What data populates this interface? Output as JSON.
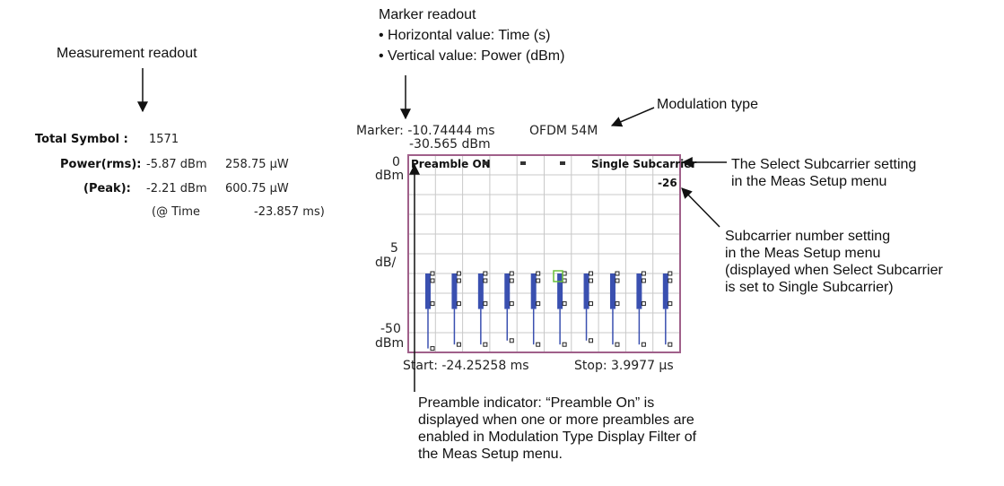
{
  "measurement": {
    "total_symbol_label": "Total Symbol :",
    "total_symbol_value": "1571",
    "power_rms_label": "Power(rms):",
    "power_rms_dbm": "-5.87 dBm",
    "power_rms_uw": "258.75 µW",
    "peak_label": "(Peak):",
    "peak_dbm": "-2.21 dBm",
    "peak_uw": "600.75 µW",
    "peak_time_label": "(@ Time",
    "peak_time_value": "-23.857 ms)"
  },
  "screen": {
    "marker_line1": "Marker: -10.74444 ms",
    "marker_line2": "-30.565 dBm",
    "modulation": "OFDM 54M",
    "preamble_indicator": "Preamble ON",
    "single_subcarrier": "Single Subcarrier",
    "subcarrier_number": "-26",
    "y_top_value": "0",
    "y_top_unit": "dBm",
    "y_scale_value": "5",
    "y_scale_unit": "dB/",
    "y_bottom_value": "-50",
    "y_bottom_unit": "dBm",
    "start": "Start: -24.25258 ms",
    "stop": "Stop: 3.9977 µs"
  },
  "callouts": {
    "measurement_readout": "Measurement readout",
    "marker_readout_title": "Marker readout",
    "marker_readout_h": "• Horizontal value: Time (s)",
    "marker_readout_v": "• Vertical value: Power (dBm)",
    "modulation_type": "Modulation type",
    "select_subcarrier": "The Select Subcarrier setting\nin the Meas Setup menu",
    "subcarrier_number": "Subcarrier number setting\nin the Meas Setup menu\n(displayed when Select Subcarrier\nis set to Single Subcarrier)",
    "preamble_indicator": "Preamble indicator: “Preamble On” is\ndisplayed when one or more preambles are\nenabled in Modulation Type Display Filter of\nthe Meas Setup menu."
  },
  "colors": {
    "frame": "#a0608a",
    "grid": "#c8c8c8",
    "trace": "#3a50b0",
    "marker": "#6bbf3a"
  },
  "chart_data": {
    "type": "line",
    "title": "",
    "xlabel": "",
    "ylabel": "",
    "ylim": [
      -50,
      0
    ],
    "y_ticks": [
      "0 dBm",
      "-50 dBm"
    ],
    "scale": "5 dB/",
    "x_start": "-24.25258 ms",
    "x_stop": "3.9977 µs",
    "marker": {
      "time": "-10.74444 ms",
      "power": "-30.565 dBm"
    },
    "grid": true,
    "series": [
      {
        "values": [
          -31,
          -39,
          -49,
          -31,
          -39,
          -48,
          -31,
          -39,
          -48,
          -31,
          -39,
          -47,
          -31,
          -39,
          -48,
          -31,
          -39,
          -48,
          -31,
          -39,
          -47,
          -31,
          -39,
          -48,
          -31,
          -39,
          -48,
          -31,
          -39,
          -48
        ]
      }
    ],
    "bursts": [
      {
        "top": -30,
        "bottom": -49
      },
      {
        "top": -30,
        "bottom": -48
      },
      {
        "top": -30,
        "bottom": -48
      },
      {
        "top": -30,
        "bottom": -47
      },
      {
        "top": -30,
        "bottom": -48
      },
      {
        "top": -30,
        "bottom": -48
      },
      {
        "top": -30,
        "bottom": -47
      },
      {
        "top": -30,
        "bottom": -48
      },
      {
        "top": -30,
        "bottom": -48
      },
      {
        "top": -30,
        "bottom": -48
      }
    ]
  }
}
